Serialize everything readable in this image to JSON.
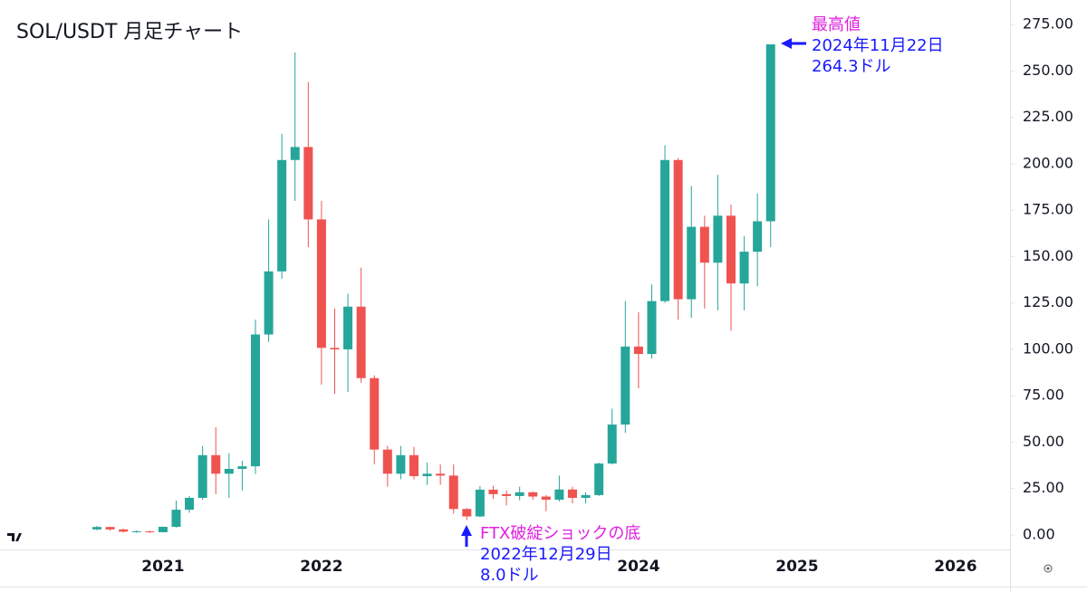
{
  "chart_data": {
    "type": "candlestick",
    "title": "SOL/USDT 月足チャート",
    "categories": [
      null,
      null,
      null,
      null,
      null,
      "2021",
      null,
      null,
      null,
      null,
      null,
      null,
      null,
      null,
      null,
      null,
      null,
      "2022",
      null,
      null,
      null,
      null,
      null,
      null,
      null,
      null,
      null,
      null,
      null,
      null,
      null,
      null,
      null,
      null,
      null,
      null,
      null,
      null,
      null,
      null,
      null,
      "2024",
      null,
      null,
      null,
      null,
      null,
      null,
      null,
      null,
      null,
      null,
      null,
      "2025",
      null,
      null,
      null,
      null,
      null,
      null,
      null,
      null,
      null,
      null,
      null,
      "2026"
    ],
    "open": [
      3,
      4.3,
      3,
      1.8,
      2,
      1.5,
      4.4,
      13.6,
      20,
      43,
      33,
      35.6,
      37,
      108,
      142,
      202,
      209,
      170,
      100.8,
      100,
      123,
      84.5,
      46,
      33,
      43,
      31.7,
      33,
      32,
      14,
      10,
      24.4,
      22,
      21,
      23,
      20.7,
      19,
      24.5,
      20,
      21.5,
      38.5,
      59.5,
      101.5,
      97.5,
      126,
      202,
      127,
      166,
      146.7,
      172,
      135.5,
      152.6,
      169,
      null,
      null,
      null,
      null,
      null,
      null,
      null,
      null,
      null,
      null,
      null,
      null,
      null,
      null
    ],
    "high": [
      4.9,
      4.5,
      3.5,
      2.5,
      2.3,
      4.6,
      18.5,
      21,
      48,
      58,
      44,
      40,
      116,
      170,
      216,
      260,
      244,
      180,
      122,
      130,
      144,
      86,
      48,
      48,
      47.5,
      39,
      38,
      38,
      14.5,
      26.4,
      26.5,
      24,
      26,
      23.5,
      21.5,
      32,
      26,
      23,
      39,
      68,
      126,
      120,
      135,
      210,
      203,
      188,
      172,
      194,
      178,
      161,
      184,
      264.3,
      null,
      null,
      null,
      null,
      null,
      null,
      null,
      null,
      null,
      null,
      null,
      null,
      null,
      null
    ],
    "low": [
      2.5,
      2.3,
      1.2,
      1.2,
      1.1,
      1.4,
      4,
      12,
      19,
      22,
      20,
      24,
      33,
      104,
      138,
      180,
      155,
      81,
      76,
      77,
      82,
      38,
      26,
      30,
      30,
      27,
      27,
      11.5,
      8.0,
      9.6,
      19.5,
      15.9,
      18.7,
      19,
      12.8,
      18,
      17,
      17,
      21,
      38,
      55,
      79,
      95,
      125,
      116,
      117,
      122,
      121,
      110,
      121,
      134,
      155,
      null,
      null,
      null,
      null,
      null,
      null,
      null,
      null,
      null,
      null,
      null,
      null,
      null,
      null
    ],
    "close": [
      4.3,
      3,
      1.8,
      2,
      1.5,
      4.4,
      13.6,
      20,
      43,
      33,
      35.6,
      37,
      108,
      142,
      202,
      209,
      170,
      100.8,
      100,
      123,
      84.5,
      46,
      33,
      43,
      31.7,
      33,
      32,
      14,
      10,
      24.4,
      22,
      21,
      23,
      20.7,
      19,
      24.5,
      20,
      21.5,
      38.5,
      59.5,
      101.5,
      97.5,
      126,
      202,
      127,
      166,
      146.7,
      172,
      135.5,
      152.6,
      169,
      264.3,
      null,
      null,
      null,
      null,
      null,
      null,
      null,
      null,
      null,
      null,
      null,
      null,
      null,
      null
    ],
    "up_color": "#26a69a",
    "down_color": "#ef5350",
    "ylim": [
      -7.8,
      288.2
    ],
    "yticks": [
      {
        "value": 0,
        "label": "0.00"
      },
      {
        "value": 25,
        "label": "25.00"
      },
      {
        "value": 50,
        "label": "50.00"
      },
      {
        "value": 75,
        "label": "75.00"
      },
      {
        "value": 100,
        "label": "100.00"
      },
      {
        "value": 125,
        "label": "125.00"
      },
      {
        "value": 150,
        "label": "150.00"
      },
      {
        "value": 175,
        "label": "175.00"
      },
      {
        "value": 200,
        "label": "200.00"
      },
      {
        "value": 225,
        "label": "225.00"
      },
      {
        "value": 250,
        "label": "250.00"
      },
      {
        "value": 275,
        "label": "275.00"
      }
    ],
    "annotations": [
      {
        "lines": [
          {
            "text": "最高値",
            "color": "#e020e0"
          },
          {
            "text": "2024年11月22日",
            "color": "#1a1aff"
          },
          {
            "text": "264.3ドル",
            "color": "#1a1aff"
          }
        ]
      },
      {
        "lines": [
          {
            "text": "FTX破綻ショックの底",
            "color": "#e020e0"
          },
          {
            "text": "2022年12月29日",
            "color": "#1a1aff"
          },
          {
            "text": "8.0ドル",
            "color": "#1a1aff"
          }
        ]
      }
    ]
  }
}
